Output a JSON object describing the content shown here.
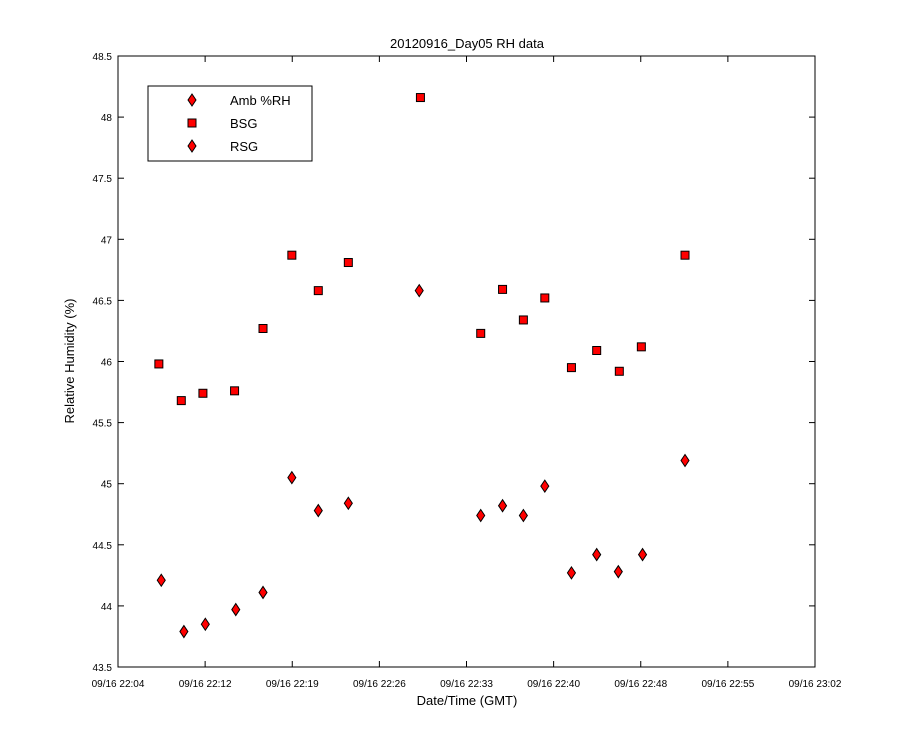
{
  "chart_data": {
    "type": "scatter",
    "title": "20120916_Day05 RH data",
    "xlabel": "Date/Time (GMT)",
    "ylabel": "Relative Humidity (%)",
    "xlim": [
      "09/16 22:04",
      "09/16 23:02"
    ],
    "ylim": [
      43.5,
      48.5
    ],
    "x_ticks": [
      "09/16 22:04",
      "09/16 22:12",
      "09/16 22:19",
      "09/16 22:26",
      "09/16 22:33",
      "09/16 22:40",
      "09/16 22:48",
      "09/16 22:55",
      "09/16 23:02"
    ],
    "x_tick_minutes": [
      0,
      7.25,
      14.5,
      21.75,
      29,
      36.25,
      43.5,
      50.75,
      58
    ],
    "y_ticks": [
      "43.5",
      "44",
      "44.5",
      "45",
      "45.5",
      "46",
      "46.5",
      "47",
      "47.5",
      "48",
      "48.5"
    ],
    "grid": false,
    "legend_position": "top-left",
    "marker_color": "#ff0000",
    "series": [
      {
        "name": "Amb %RH",
        "marker": "diamond",
        "points": []
      },
      {
        "name": "BSG",
        "marker": "square",
        "points": [
          {
            "x": "09/16 22:07:24",
            "y": 45.98
          },
          {
            "x": "09/16 22:09:16",
            "y": 45.68
          },
          {
            "x": "09/16 22:11:04",
            "y": 45.74
          },
          {
            "x": "09/16 22:13:42",
            "y": 45.76
          },
          {
            "x": "09/16 22:16:04",
            "y": 46.27
          },
          {
            "x": "09/16 22:18:28",
            "y": 46.87
          },
          {
            "x": "09/16 22:20:40",
            "y": 46.58
          },
          {
            "x": "09/16 22:23:10",
            "y": 46.81
          },
          {
            "x": "09/16 22:29:10",
            "y": 48.16
          },
          {
            "x": "09/16 22:34:11",
            "y": 46.23
          },
          {
            "x": "09/16 22:36:00",
            "y": 46.59
          },
          {
            "x": "09/16 22:37:44",
            "y": 46.34
          },
          {
            "x": "09/16 22:39:31",
            "y": 46.52
          },
          {
            "x": "09/16 22:41:44",
            "y": 45.95
          },
          {
            "x": "09/16 22:43:50",
            "y": 46.09
          },
          {
            "x": "09/16 22:45:43",
            "y": 45.92
          },
          {
            "x": "09/16 22:47:33",
            "y": 46.12
          },
          {
            "x": "09/16 22:51:11",
            "y": 46.87
          }
        ]
      },
      {
        "name": "RSG",
        "marker": "diamond",
        "points": [
          {
            "x": "09/16 22:07:36",
            "y": 44.21
          },
          {
            "x": "09/16 22:09:29",
            "y": 43.79
          },
          {
            "x": "09/16 22:11:16",
            "y": 43.85
          },
          {
            "x": "09/16 22:13:48",
            "y": 43.97
          },
          {
            "x": "09/16 22:16:04",
            "y": 44.11
          },
          {
            "x": "09/16 22:18:28",
            "y": 45.05
          },
          {
            "x": "09/16 22:20:40",
            "y": 44.78
          },
          {
            "x": "09/16 22:23:10",
            "y": 44.84
          },
          {
            "x": "09/16 22:29:04",
            "y": 46.58
          },
          {
            "x": "09/16 22:34:11",
            "y": 44.74
          },
          {
            "x": "09/16 22:36:00",
            "y": 44.82
          },
          {
            "x": "09/16 22:37:44",
            "y": 44.74
          },
          {
            "x": "09/16 22:39:31",
            "y": 44.98
          },
          {
            "x": "09/16 22:41:44",
            "y": 44.27
          },
          {
            "x": "09/16 22:43:50",
            "y": 44.42
          },
          {
            "x": "09/16 22:45:38",
            "y": 44.28
          },
          {
            "x": "09/16 22:47:39",
            "y": 44.42
          },
          {
            "x": "09/16 22:51:11",
            "y": 45.19
          }
        ]
      }
    ]
  }
}
